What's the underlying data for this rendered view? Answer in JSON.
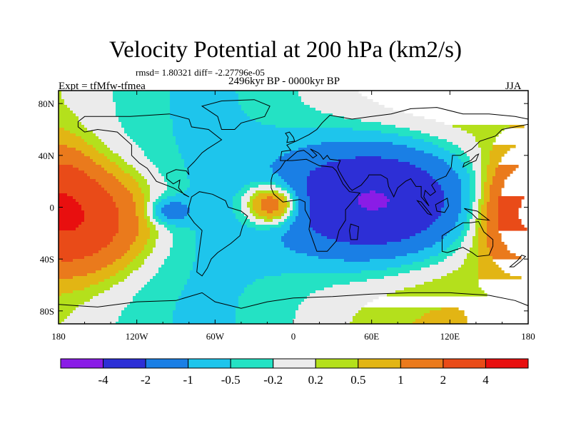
{
  "header": {
    "title": "Velocity Potential at 200 hPa (km2/s)",
    "stats": "rmsd= 1.80321 diff= -2.27796e-05",
    "left_label": "Expt = tfMfw-tfmea",
    "center_label": "2496kyr BP - 0000kyr BP",
    "right_label": "JJA"
  },
  "chart_data": {
    "type": "heatmap",
    "projection": "cylindrical equidistant",
    "title": "Velocity Potential at 200 hPa (km2/s)",
    "xlim": [
      -180,
      180
    ],
    "ylim": [
      -90,
      90
    ],
    "x_ticks": [
      {
        "value": -180,
        "label": "180"
      },
      {
        "value": -120,
        "label": "120W"
      },
      {
        "value": -60,
        "label": "60W"
      },
      {
        "value": 0,
        "label": "0"
      },
      {
        "value": 60,
        "label": "60E"
      },
      {
        "value": 120,
        "label": "120E"
      },
      {
        "value": 180,
        "label": "180"
      }
    ],
    "y_ticks": [
      {
        "value": 80,
        "label": "80N"
      },
      {
        "value": 40,
        "label": "40N"
      },
      {
        "value": 0,
        "label": "0"
      },
      {
        "value": -40,
        "label": "40S"
      },
      {
        "value": -80,
        "label": "80S"
      }
    ],
    "levels": [
      -4,
      -2,
      -1,
      -0.5,
      -0.2,
      0.2,
      0.5,
      1,
      2,
      4
    ],
    "level_labels": [
      "-4",
      "-2",
      "-1",
      "-0.5",
      "-0.2",
      "0.2",
      "0.5",
      "1",
      "2",
      "4"
    ],
    "colors": [
      "#8a1ce6",
      "#2d2fd6",
      "#1a7fe5",
      "#1ec5ec",
      "#24e2c4",
      "#ebebeb",
      "#b4e01c",
      "#e2b514",
      "#ea7a1c",
      "#e94b18",
      "#e80f0f"
    ],
    "centers": [
      {
        "lon": 65,
        "lat": 5,
        "value": -4.5,
        "sx": 70,
        "sy": 42
      },
      {
        "lon": -95,
        "lat": -3,
        "value": -1.3,
        "sx": 17,
        "sy": 10
      },
      {
        "lon": -160,
        "lat": -10,
        "value": 3.0,
        "sx": 48,
        "sy": 38
      },
      {
        "lon": -15,
        "lat": 2,
        "value": 2.8,
        "sx": 22,
        "sy": 16
      },
      {
        "lon": 178,
        "lat": 5,
        "value": 2.2,
        "sx": 28,
        "sy": 40
      }
    ]
  },
  "colorbar": {
    "colors": [
      "#8a1ce6",
      "#2d2fd6",
      "#1a7fe5",
      "#1ec5ec",
      "#24e2c4",
      "#ebebeb",
      "#b4e01c",
      "#e2b514",
      "#ea7a1c",
      "#e94b18",
      "#e80f0f"
    ],
    "labels": [
      "-4",
      "-2",
      "-1",
      "-0.5",
      "-0.2",
      "0.2",
      "0.5",
      "1",
      "2",
      "4"
    ]
  }
}
